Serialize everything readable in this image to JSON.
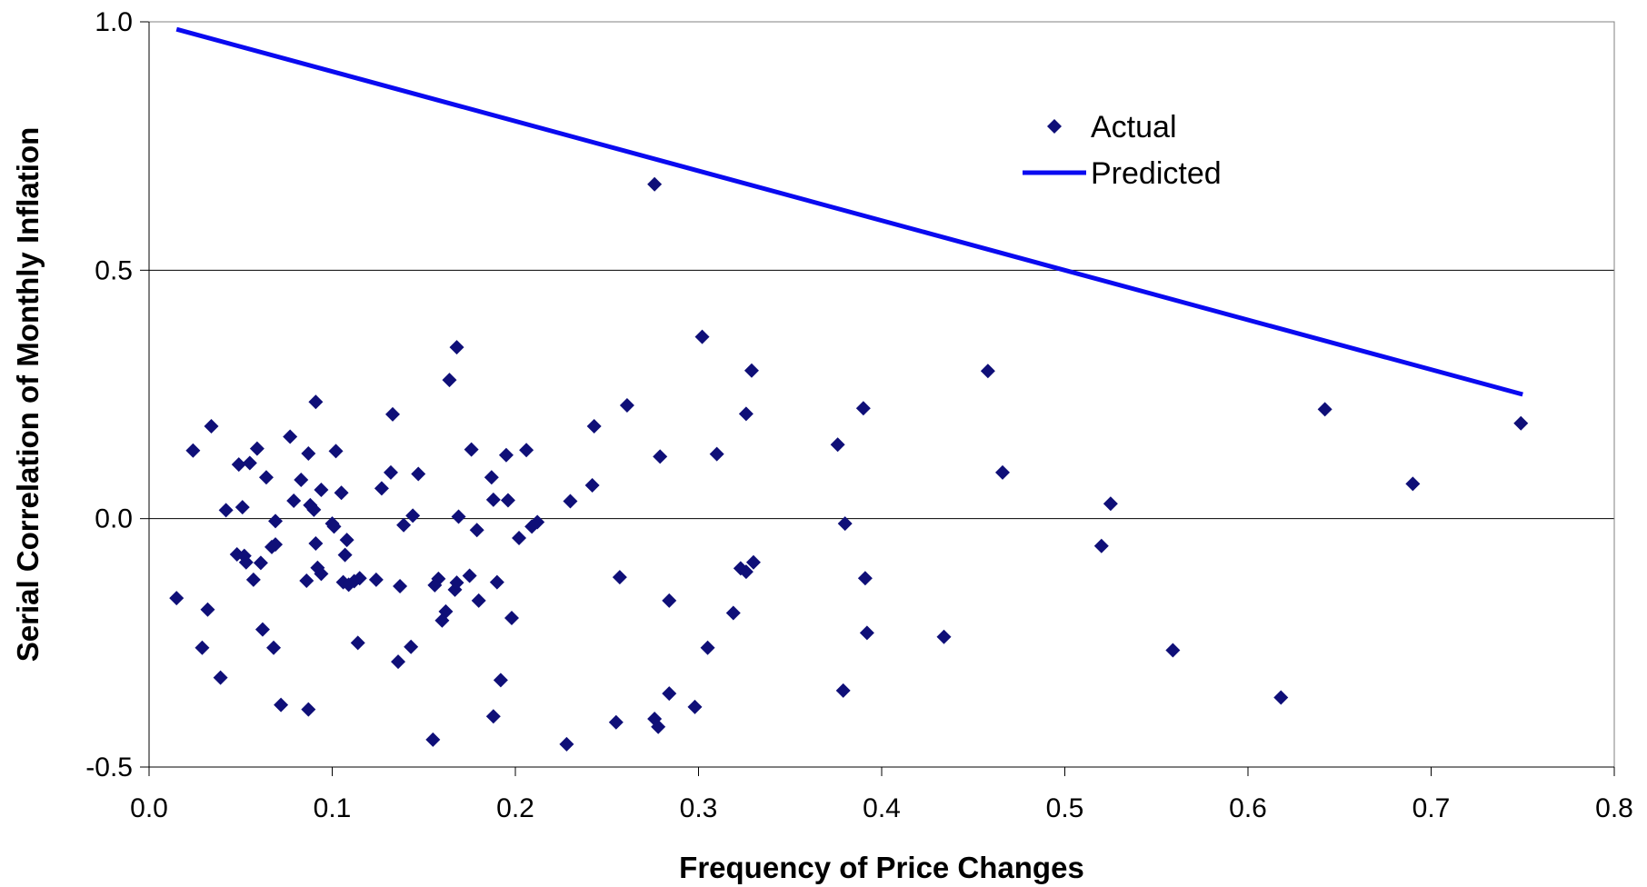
{
  "chart_data": {
    "type": "scatter",
    "title": "",
    "xlabel": "Frequency of Price Changes",
    "ylabel": "Serial Correlation of Monthly Inflation",
    "xlim": [
      0.0,
      0.8
    ],
    "ylim": [
      -0.5,
      1.0
    ],
    "x_ticks": [
      "0.0",
      "0.1",
      "0.2",
      "0.3",
      "0.4",
      "0.5",
      "0.6",
      "0.7",
      "0.8"
    ],
    "y_ticks": [
      "-0.5",
      "0.0",
      "0.5",
      "1.0"
    ],
    "grid": "horizontal",
    "legend_position": "top-center-right",
    "colors": {
      "actual": "#0f0f78",
      "predicted": "#0a0af0",
      "gridline": "#000000"
    },
    "series": [
      {
        "name": "Actual",
        "kind": "scatter",
        "marker": "diamond",
        "points": [
          [
            0.015,
            -0.16
          ],
          [
            0.024,
            0.137
          ],
          [
            0.029,
            -0.26
          ],
          [
            0.032,
            -0.183
          ],
          [
            0.034,
            0.186
          ],
          [
            0.039,
            -0.32
          ],
          [
            0.042,
            0.017
          ],
          [
            0.048,
            -0.072
          ],
          [
            0.049,
            0.109
          ],
          [
            0.051,
            0.023
          ],
          [
            0.052,
            -0.075
          ],
          [
            0.053,
            -0.088
          ],
          [
            0.055,
            0.112
          ],
          [
            0.057,
            -0.123
          ],
          [
            0.059,
            0.141
          ],
          [
            0.061,
            -0.089
          ],
          [
            0.062,
            -0.223
          ],
          [
            0.064,
            0.083
          ],
          [
            0.067,
            -0.057
          ],
          [
            0.068,
            -0.26
          ],
          [
            0.069,
            -0.005
          ],
          [
            0.069,
            -0.052
          ],
          [
            0.072,
            -0.375
          ],
          [
            0.077,
            0.165
          ],
          [
            0.079,
            0.036
          ],
          [
            0.083,
            0.078
          ],
          [
            0.086,
            -0.125
          ],
          [
            0.087,
            0.131
          ],
          [
            0.087,
            -0.384
          ],
          [
            0.088,
            0.027
          ],
          [
            0.09,
            0.018
          ],
          [
            0.091,
            -0.05
          ],
          [
            0.091,
            0.235
          ],
          [
            0.092,
            -0.099
          ],
          [
            0.094,
            0.058
          ],
          [
            0.094,
            -0.111
          ],
          [
            0.1,
            -0.01
          ],
          [
            0.101,
            -0.016
          ],
          [
            0.102,
            0.136
          ],
          [
            0.105,
            0.052
          ],
          [
            0.106,
            -0.128
          ],
          [
            0.107,
            -0.073
          ],
          [
            0.108,
            -0.043
          ],
          [
            0.109,
            -0.133
          ],
          [
            0.112,
            -0.126
          ],
          [
            0.114,
            -0.25
          ],
          [
            0.115,
            -0.12
          ],
          [
            0.124,
            -0.123
          ],
          [
            0.127,
            0.061
          ],
          [
            0.132,
            0.093
          ],
          [
            0.133,
            0.21
          ],
          [
            0.136,
            -0.288
          ],
          [
            0.137,
            -0.136
          ],
          [
            0.139,
            -0.013
          ],
          [
            0.143,
            -0.258
          ],
          [
            0.144,
            0.006
          ],
          [
            0.147,
            0.09
          ],
          [
            0.155,
            -0.445
          ],
          [
            0.156,
            -0.134
          ],
          [
            0.158,
            -0.121
          ],
          [
            0.16,
            -0.205
          ],
          [
            0.162,
            -0.187
          ],
          [
            0.164,
            0.279
          ],
          [
            0.167,
            -0.143
          ],
          [
            0.168,
            -0.129
          ],
          [
            0.168,
            0.345
          ],
          [
            0.169,
            0.004
          ],
          [
            0.175,
            -0.115
          ],
          [
            0.176,
            0.139
          ],
          [
            0.179,
            -0.023
          ],
          [
            0.18,
            -0.165
          ],
          [
            0.187,
            0.083
          ],
          [
            0.188,
            0.038
          ],
          [
            0.188,
            -0.398
          ],
          [
            0.19,
            -0.128
          ],
          [
            0.192,
            -0.325
          ],
          [
            0.195,
            0.128
          ],
          [
            0.196,
            0.037
          ],
          [
            0.198,
            -0.2
          ],
          [
            0.202,
            -0.039
          ],
          [
            0.206,
            0.138
          ],
          [
            0.209,
            -0.016
          ],
          [
            0.212,
            -0.007
          ],
          [
            0.228,
            -0.454
          ],
          [
            0.23,
            0.035
          ],
          [
            0.242,
            0.067
          ],
          [
            0.243,
            0.186
          ],
          [
            0.255,
            -0.41
          ],
          [
            0.257,
            -0.118
          ],
          [
            0.261,
            0.228
          ],
          [
            0.276,
            -0.403
          ],
          [
            0.276,
            0.673
          ],
          [
            0.278,
            -0.419
          ],
          [
            0.279,
            0.125
          ],
          [
            0.284,
            -0.352
          ],
          [
            0.284,
            -0.165
          ],
          [
            0.298,
            -0.379
          ],
          [
            0.302,
            0.366
          ],
          [
            0.305,
            -0.26
          ],
          [
            0.31,
            0.13
          ],
          [
            0.319,
            -0.19
          ],
          [
            0.323,
            -0.1
          ],
          [
            0.326,
            -0.107
          ],
          [
            0.326,
            0.211
          ],
          [
            0.329,
            0.298
          ],
          [
            0.33,
            -0.088
          ],
          [
            0.376,
            0.149
          ],
          [
            0.379,
            -0.346
          ],
          [
            0.38,
            -0.01
          ],
          [
            0.39,
            0.222
          ],
          [
            0.391,
            -0.12
          ],
          [
            0.392,
            -0.23
          ],
          [
            0.434,
            -0.238
          ],
          [
            0.458,
            0.297
          ],
          [
            0.466,
            0.093
          ],
          [
            0.52,
            -0.055
          ],
          [
            0.525,
            0.03
          ],
          [
            0.559,
            -0.265
          ],
          [
            0.618,
            -0.36
          ],
          [
            0.642,
            0.22
          ],
          [
            0.69,
            0.07
          ],
          [
            0.749,
            0.192
          ]
        ]
      },
      {
        "name": "Predicted",
        "kind": "line",
        "points": [
          [
            0.015,
            0.985
          ],
          [
            0.75,
            0.25
          ]
        ]
      }
    ]
  }
}
